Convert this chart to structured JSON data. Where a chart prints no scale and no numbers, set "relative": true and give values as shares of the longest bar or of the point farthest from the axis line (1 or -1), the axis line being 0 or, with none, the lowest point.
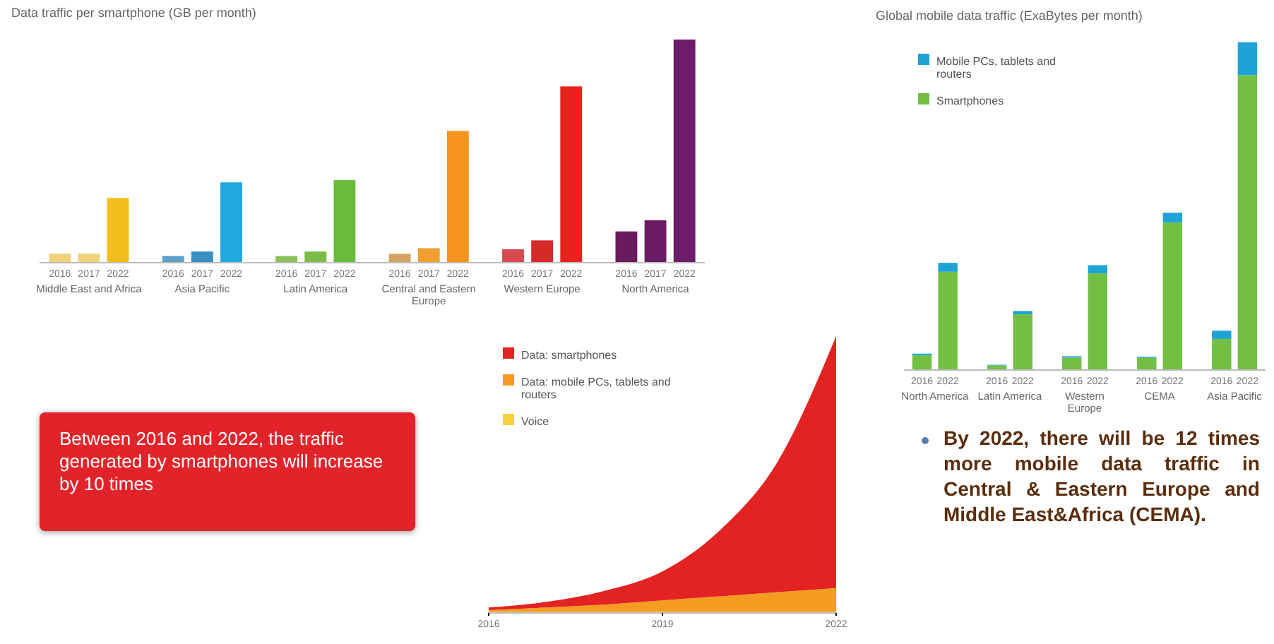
{
  "chart_data": [
    {
      "type": "bar",
      "title": "Data traffic per smartphone (GB per month)",
      "relative": true,
      "categories": [
        "2016",
        "2017",
        "2022",
        "2016",
        "2017",
        "2022",
        "2016",
        "2017",
        "2022",
        "2016",
        "2017",
        "2022",
        "2016",
        "2017",
        "2022",
        "2016",
        "2017",
        "2022"
      ],
      "values": [
        0.04,
        0.04,
        0.29,
        0.03,
        0.05,
        0.36,
        0.03,
        0.05,
        0.37,
        0.04,
        0.065,
        0.59,
        0.06,
        0.1,
        0.79,
        0.14,
        0.19,
        1
      ],
      "colors": [
        "#efd27a",
        "#efd27a",
        "#f2be1d",
        "#5aa0c8",
        "#3a8fc5",
        "#20a8e0",
        "#8cbf5a",
        "#7cbb45",
        "#6cbb3c",
        "#d4a463",
        "#f0a030",
        "#f7941d",
        "#d84a4f",
        "#d42a2a",
        "#e8231f",
        "#6a1a5e",
        "#6b1b63",
        "#6d1b6b"
      ],
      "annotations": [
        "Middle East and Africa",
        "Asia Pacific",
        "Latin America",
        "Central and Eastern Europe",
        "Western Europe",
        "North America"
      ]
    },
    {
      "type": "bar",
      "title": "Global mobile data traffic (ExaBytes per month)",
      "relative": true,
      "stacked": true,
      "legend": "top left",
      "categories": [
        "2016",
        "2022",
        "2016",
        "2022",
        "2016",
        "2022",
        "2016",
        "2022",
        "2016",
        "2022"
      ],
      "series": [
        {
          "name": "Smartphones",
          "color": "#72bf44",
          "values": [
            0.045,
            0.3,
            0.014,
            0.17,
            0.038,
            0.295,
            0.037,
            0.45,
            0.095,
            0.9
          ]
        },
        {
          "name": "Mobile PCs, tablets and routers",
          "color": "#1fa3d6",
          "values": [
            0.005,
            0.027,
            0.002,
            0.01,
            0.004,
            0.025,
            0.003,
            0.03,
            0.025,
            0.1
          ]
        }
      ],
      "annotations": [
        "North America",
        "Latin America",
        "Western Europe",
        "CEMA",
        "Asia Pacific"
      ]
    },
    {
      "type": "area",
      "relative": true,
      "stacked": true,
      "legend": "top left",
      "x": [
        2016,
        2017,
        2018,
        2019,
        2020,
        2021,
        2022
      ],
      "xlim": [
        2016,
        2022
      ],
      "xticks": [
        2016,
        2019,
        2022
      ],
      "series": [
        {
          "name": "Voice",
          "color": "#f6d23a",
          "values": [
            0.004,
            0.004,
            0.004,
            0.004,
            0.004,
            0.004,
            0.004
          ]
        },
        {
          "name": "Data: mobile PCs, tablets and routers",
          "color": "#f39c1f",
          "values": [
            0.006,
            0.016,
            0.026,
            0.041,
            0.056,
            0.071,
            0.086
          ]
        },
        {
          "name": "Data: smartphones",
          "color": "#e32322",
          "values": [
            0.01,
            0.02,
            0.05,
            0.105,
            0.24,
            0.475,
            0.91
          ]
        }
      ]
    },
    {
      "type": "other",
      "annotations": [
        "Between 2016 and 2022, the traffic generated by smartphones will increase by 10 times",
        "By 2022, there will be 12 times more mobile data traffic in Central & Eastern Europe and Middle East&Africa (CEMA)."
      ]
    }
  ]
}
